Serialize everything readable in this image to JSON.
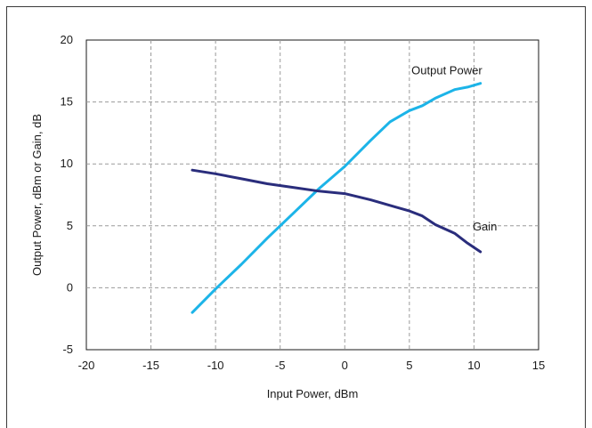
{
  "chart_data": {
    "type": "line",
    "xlabel": "Input Power, dBm",
    "ylabel": "Output Power, dBm or Gain, dB",
    "xlim": [
      -20,
      15
    ],
    "ylim": [
      -5,
      20
    ],
    "x_ticks": [
      "-20",
      "-15",
      "-10",
      "-5",
      "0",
      "5",
      "10",
      "15"
    ],
    "y_ticks": [
      "-5",
      "0",
      "5",
      "10",
      "15",
      "20"
    ],
    "grid": true,
    "series": [
      {
        "name": "Output Power",
        "color": "#1cb4e8",
        "x": [
          -11.8,
          -10,
          -8,
          -6,
          -4,
          -2,
          0,
          2,
          3.5,
          5,
          6,
          7,
          8.5,
          9.5,
          10.5
        ],
        "y": [
          -2,
          -0.1,
          1.9,
          4,
          6,
          8,
          9.8,
          11.9,
          13.4,
          14.3,
          14.7,
          15.3,
          16,
          16.2,
          16.5
        ]
      },
      {
        "name": "Gain",
        "color": "#2a2d7c",
        "x": [
          -11.8,
          -10,
          -8,
          -6,
          -4,
          -2,
          0,
          2,
          4,
          5,
          6,
          7,
          8.5,
          9.5,
          10.5
        ],
        "y": [
          9.5,
          9.2,
          8.8,
          8.4,
          8.1,
          7.8,
          7.6,
          7.1,
          6.5,
          6.2,
          5.8,
          5.1,
          4.4,
          3.6,
          2.9
        ]
      }
    ]
  }
}
